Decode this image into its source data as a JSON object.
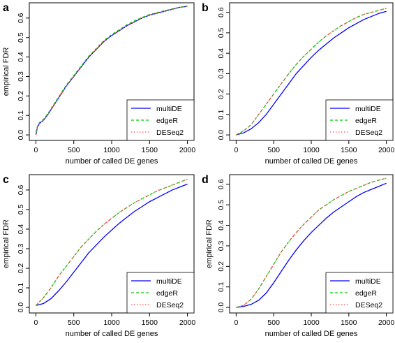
{
  "chart_data": [
    {
      "panel": "a",
      "type": "line",
      "xlabel": "number of called DE genes",
      "ylabel": "empirical FDR",
      "xlim": [
        0,
        2000
      ],
      "ylim": [
        0,
        0.65
      ],
      "xticks": [
        0,
        500,
        1000,
        1500,
        2000
      ],
      "yticks": [
        0.0,
        0.1,
        0.2,
        0.3,
        0.4,
        0.5,
        0.6
      ],
      "legend_position": "bottom-right",
      "x": [
        0,
        20,
        50,
        100,
        150,
        200,
        300,
        400,
        500,
        600,
        700,
        800,
        900,
        1000,
        1100,
        1200,
        1300,
        1400,
        1500,
        1600,
        1700,
        1800,
        1900,
        2000
      ],
      "series": [
        {
          "name": "multiDE",
          "color": "#0000ff",
          "dash": "solid",
          "values": [
            0.0,
            0.04,
            0.06,
            0.075,
            0.1,
            0.13,
            0.19,
            0.25,
            0.3,
            0.35,
            0.4,
            0.44,
            0.48,
            0.51,
            0.535,
            0.56,
            0.58,
            0.6,
            0.615,
            0.625,
            0.635,
            0.645,
            0.655,
            0.66
          ]
        },
        {
          "name": "edgeR",
          "color": "#00cc00",
          "dash": "dashed",
          "values": [
            0.01,
            0.045,
            0.065,
            0.08,
            0.105,
            0.135,
            0.195,
            0.255,
            0.305,
            0.355,
            0.405,
            0.445,
            0.485,
            0.515,
            0.54,
            0.565,
            0.585,
            0.603,
            0.618,
            0.628,
            0.638,
            0.647,
            0.656,
            0.661
          ]
        },
        {
          "name": "DESeq2",
          "color": "#ff4d4d",
          "dash": "dotted",
          "values": [
            0.0,
            0.04,
            0.06,
            0.075,
            0.1,
            0.13,
            0.19,
            0.25,
            0.3,
            0.35,
            0.4,
            0.44,
            0.48,
            0.51,
            0.535,
            0.56,
            0.58,
            0.6,
            0.615,
            0.625,
            0.635,
            0.645,
            0.655,
            0.66
          ]
        }
      ]
    },
    {
      "panel": "b",
      "type": "line",
      "xlabel": "number of called DE genes",
      "ylabel": "",
      "xlim": [
        0,
        2000
      ],
      "ylim": [
        0,
        0.62
      ],
      "xticks": [
        0,
        500,
        1000,
        1500,
        2000
      ],
      "yticks": [
        0.0,
        0.1,
        0.2,
        0.3,
        0.4,
        0.5,
        0.6
      ],
      "legend_position": "bottom-right",
      "x": [
        0,
        100,
        200,
        300,
        400,
        500,
        600,
        700,
        800,
        900,
        1000,
        1100,
        1200,
        1300,
        1400,
        1500,
        1600,
        1700,
        1800,
        1900,
        2000
      ],
      "series": [
        {
          "name": "multiDE",
          "color": "#0000ff",
          "dash": "solid",
          "values": [
            0.0,
            0.01,
            0.03,
            0.06,
            0.1,
            0.15,
            0.2,
            0.25,
            0.3,
            0.34,
            0.38,
            0.415,
            0.445,
            0.475,
            0.5,
            0.525,
            0.545,
            0.565,
            0.58,
            0.595,
            0.605
          ]
        },
        {
          "name": "edgeR",
          "color": "#00cc00",
          "dash": "dashed",
          "values": [
            0.0,
            0.02,
            0.05,
            0.1,
            0.15,
            0.2,
            0.25,
            0.3,
            0.345,
            0.385,
            0.42,
            0.455,
            0.485,
            0.51,
            0.535,
            0.555,
            0.575,
            0.59,
            0.6,
            0.61,
            0.62
          ]
        },
        {
          "name": "DESeq2",
          "color": "#ff4d4d",
          "dash": "dotted",
          "values": [
            0.0,
            0.02,
            0.05,
            0.1,
            0.15,
            0.2,
            0.25,
            0.3,
            0.345,
            0.385,
            0.42,
            0.455,
            0.485,
            0.51,
            0.535,
            0.555,
            0.575,
            0.59,
            0.6,
            0.61,
            0.62
          ]
        }
      ]
    },
    {
      "panel": "c",
      "type": "line",
      "xlabel": "number of called DE genes",
      "ylabel": "empirical FDR",
      "xlim": [
        0,
        2000
      ],
      "ylim": [
        0,
        0.65
      ],
      "xticks": [
        0,
        500,
        1000,
        1500,
        2000
      ],
      "yticks": [
        0.0,
        0.1,
        0.2,
        0.3,
        0.4,
        0.5,
        0.6
      ],
      "legend_position": "bottom-right",
      "x": [
        0,
        100,
        200,
        300,
        400,
        500,
        600,
        700,
        800,
        900,
        1000,
        1100,
        1200,
        1300,
        1400,
        1500,
        1600,
        1700,
        1800,
        1900,
        2000
      ],
      "series": [
        {
          "name": "multiDE",
          "color": "#0000ff",
          "dash": "solid",
          "values": [
            0.01,
            0.02,
            0.045,
            0.085,
            0.13,
            0.18,
            0.23,
            0.28,
            0.32,
            0.36,
            0.395,
            0.43,
            0.46,
            0.49,
            0.515,
            0.54,
            0.56,
            0.58,
            0.6,
            0.615,
            0.63
          ]
        },
        {
          "name": "edgeR",
          "color": "#00cc00",
          "dash": "dashed",
          "values": [
            0.01,
            0.05,
            0.1,
            0.16,
            0.21,
            0.26,
            0.31,
            0.35,
            0.39,
            0.425,
            0.455,
            0.485,
            0.51,
            0.535,
            0.555,
            0.575,
            0.595,
            0.61,
            0.625,
            0.64,
            0.655
          ]
        },
        {
          "name": "DESeq2",
          "color": "#ff4d4d",
          "dash": "dotted",
          "values": [
            0.01,
            0.05,
            0.1,
            0.16,
            0.21,
            0.26,
            0.31,
            0.35,
            0.39,
            0.425,
            0.455,
            0.485,
            0.51,
            0.535,
            0.555,
            0.575,
            0.595,
            0.61,
            0.625,
            0.64,
            0.655
          ]
        }
      ]
    },
    {
      "panel": "d",
      "type": "line",
      "xlabel": "number of called DE genes",
      "ylabel": "empirical FDR",
      "xlim": [
        0,
        2000
      ],
      "ylim": [
        0,
        0.62
      ],
      "xticks": [
        0,
        500,
        1000,
        1500,
        2000
      ],
      "yticks": [
        0.0,
        0.1,
        0.2,
        0.3,
        0.4,
        0.5,
        0.6
      ],
      "legend_position": "bottom-right",
      "x": [
        0,
        100,
        200,
        300,
        400,
        500,
        600,
        700,
        800,
        900,
        1000,
        1100,
        1200,
        1300,
        1400,
        1500,
        1600,
        1700,
        1800,
        1900,
        2000
      ],
      "series": [
        {
          "name": "multiDE",
          "color": "#0000ff",
          "dash": "solid",
          "values": [
            0.0,
            0.005,
            0.015,
            0.035,
            0.07,
            0.12,
            0.175,
            0.23,
            0.28,
            0.325,
            0.365,
            0.4,
            0.435,
            0.465,
            0.49,
            0.515,
            0.54,
            0.56,
            0.575,
            0.59,
            0.605
          ]
        },
        {
          "name": "edgeR",
          "color": "#00cc00",
          "dash": "dashed",
          "values": [
            0.0,
            0.01,
            0.04,
            0.09,
            0.15,
            0.21,
            0.27,
            0.32,
            0.365,
            0.405,
            0.44,
            0.475,
            0.5,
            0.525,
            0.545,
            0.565,
            0.58,
            0.595,
            0.61,
            0.62,
            0.63
          ]
        },
        {
          "name": "DESeq2",
          "color": "#ff4d4d",
          "dash": "dotted",
          "values": [
            0.0,
            0.01,
            0.04,
            0.09,
            0.15,
            0.21,
            0.27,
            0.32,
            0.365,
            0.405,
            0.44,
            0.475,
            0.5,
            0.525,
            0.545,
            0.565,
            0.58,
            0.595,
            0.61,
            0.62,
            0.63
          ]
        }
      ]
    }
  ]
}
